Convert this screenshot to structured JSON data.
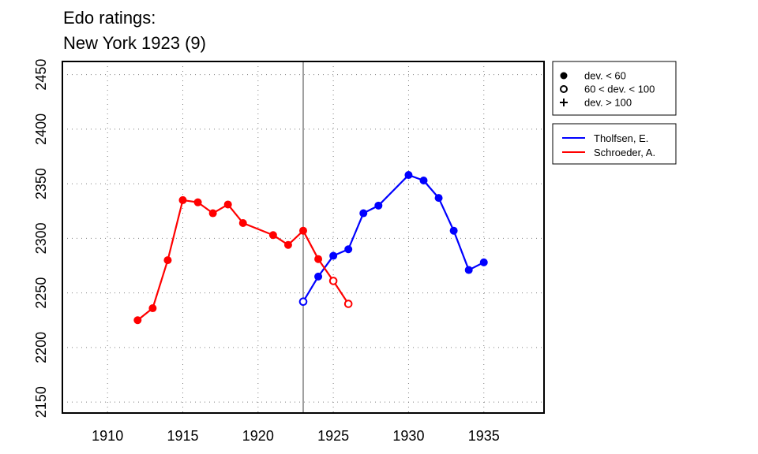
{
  "title_line1": "Edo ratings:",
  "title_line2": "New York 1923 (9)",
  "chart_data": {
    "type": "line",
    "xlim": [
      1907,
      1939
    ],
    "ylim": [
      2140,
      2462
    ],
    "x_ticks": [
      1910,
      1915,
      1920,
      1925,
      1930,
      1935
    ],
    "y_ticks": [
      2150,
      2200,
      2250,
      2300,
      2350,
      2400,
      2450
    ],
    "grid": true,
    "vertical_line_x": 1923,
    "marker_legend": [
      {
        "marker": "filled",
        "label": "dev. < 60"
      },
      {
        "marker": "open",
        "label": "60 < dev. < 100"
      },
      {
        "marker": "plus",
        "label": "dev. > 100"
      }
    ],
    "series": [
      {
        "name": "Tholfsen, E.",
        "color": "#0000ff",
        "points": [
          {
            "x": 1923,
            "y": 2242,
            "marker": "open"
          },
          {
            "x": 1924,
            "y": 2265,
            "marker": "filled"
          },
          {
            "x": 1925,
            "y": 2284,
            "marker": "filled"
          },
          {
            "x": 1926,
            "y": 2290,
            "marker": "filled"
          },
          {
            "x": 1927,
            "y": 2323,
            "marker": "filled"
          },
          {
            "x": 1928,
            "y": 2330,
            "marker": "filled"
          },
          {
            "x": 1930,
            "y": 2358,
            "marker": "filled"
          },
          {
            "x": 1931,
            "y": 2353,
            "marker": "filled"
          },
          {
            "x": 1932,
            "y": 2337,
            "marker": "filled"
          },
          {
            "x": 1933,
            "y": 2307,
            "marker": "filled"
          },
          {
            "x": 1934,
            "y": 2271,
            "marker": "filled"
          },
          {
            "x": 1935,
            "y": 2278,
            "marker": "filled"
          }
        ]
      },
      {
        "name": "Schroeder, A.",
        "color": "#ff0000",
        "points": [
          {
            "x": 1912,
            "y": 2225,
            "marker": "filled"
          },
          {
            "x": 1913,
            "y": 2236,
            "marker": "filled"
          },
          {
            "x": 1914,
            "y": 2280,
            "marker": "filled"
          },
          {
            "x": 1915,
            "y": 2335,
            "marker": "filled"
          },
          {
            "x": 1916,
            "y": 2333,
            "marker": "filled"
          },
          {
            "x": 1917,
            "y": 2323,
            "marker": "filled"
          },
          {
            "x": 1918,
            "y": 2331,
            "marker": "filled"
          },
          {
            "x": 1919,
            "y": 2314,
            "marker": "filled"
          },
          {
            "x": 1921,
            "y": 2303,
            "marker": "filled"
          },
          {
            "x": 1922,
            "y": 2294,
            "marker": "filled"
          },
          {
            "x": 1923,
            "y": 2307,
            "marker": "filled"
          },
          {
            "x": 1924,
            "y": 2281,
            "marker": "filled"
          },
          {
            "x": 1925,
            "y": 2261,
            "marker": "open"
          },
          {
            "x": 1926,
            "y": 2240,
            "marker": "open"
          }
        ]
      }
    ]
  }
}
